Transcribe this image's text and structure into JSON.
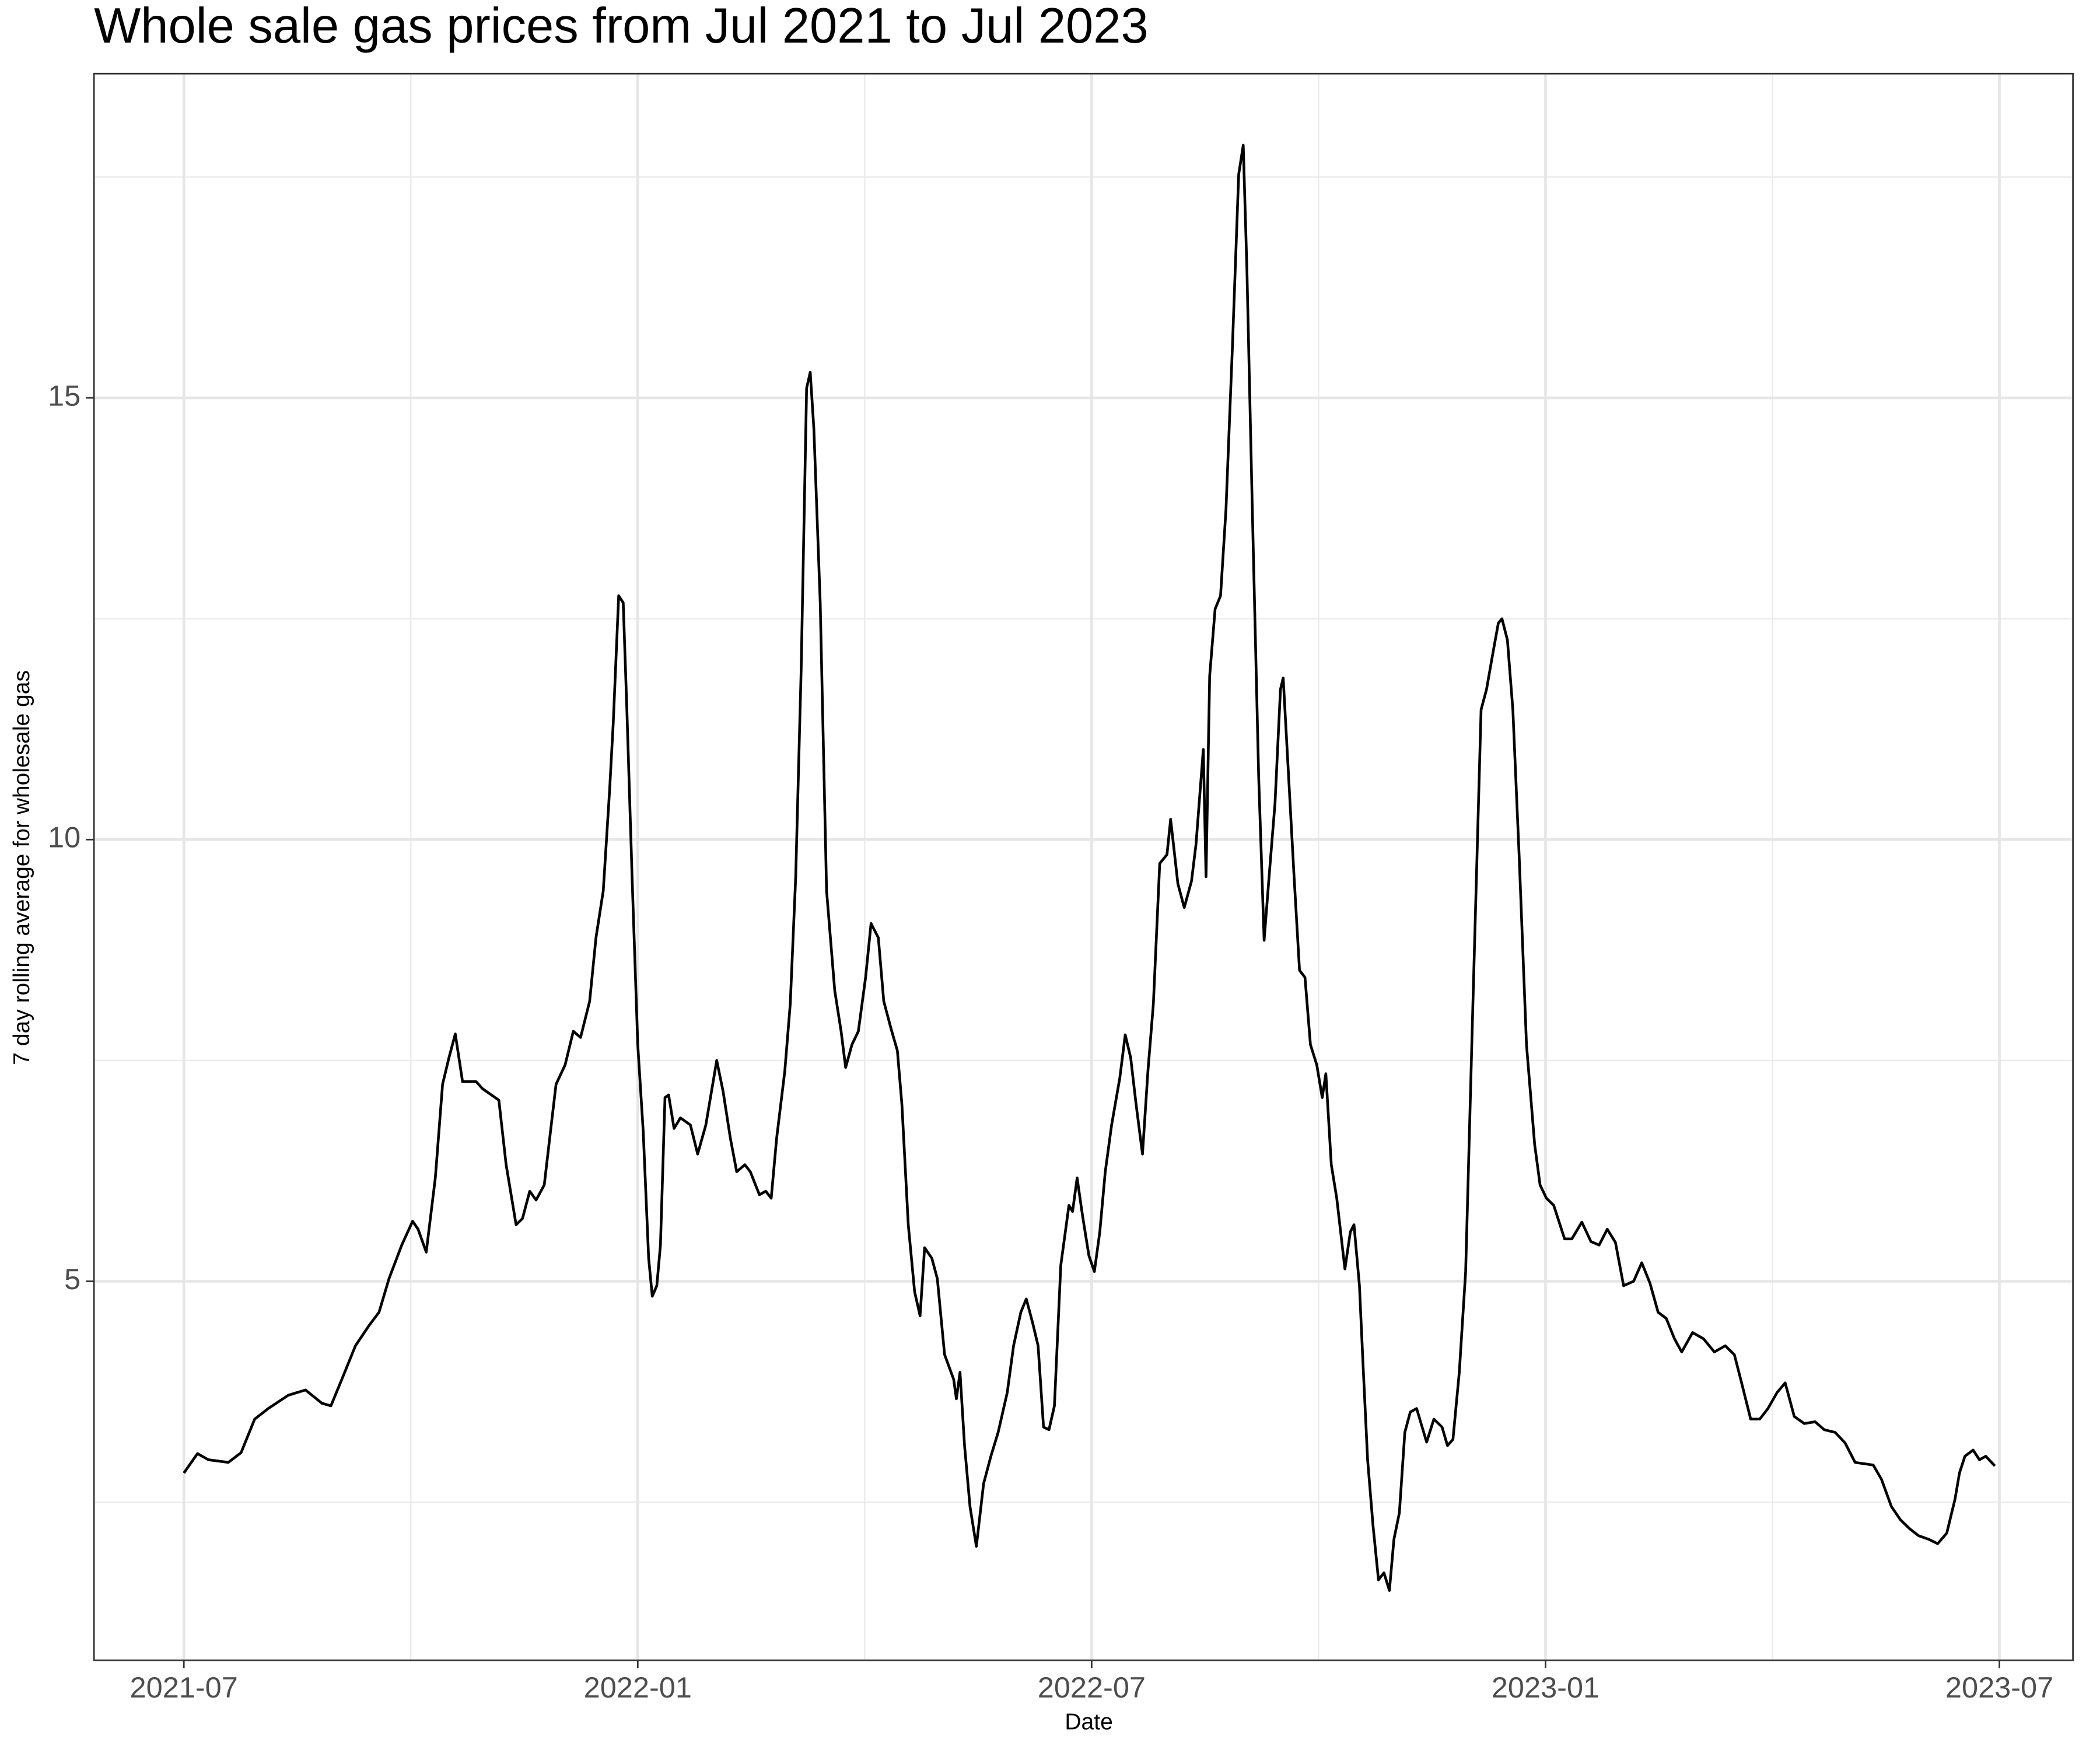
{
  "chart_data": {
    "type": "line",
    "title": "Whole sale gas prices from Jul 2021 to Jul 2023",
    "x_label": "Date",
    "y_label": "7 day rolling average for wholesale gas",
    "color": "#000000",
    "grid": true,
    "xlim": [
      2021.401,
      2023.581
    ],
    "ylim": [
      0.71,
      18.67
    ],
    "xticks": [
      {
        "value": 2021.5,
        "label": "2021-07"
      },
      {
        "value": 2022.0,
        "label": "2022-01"
      },
      {
        "value": 2022.5,
        "label": "2022-07"
      },
      {
        "value": 2023.0,
        "label": "2023-01"
      },
      {
        "value": 2023.5,
        "label": "2023-07"
      }
    ],
    "yticks": [
      5,
      10,
      15
    ],
    "xminor": [
      2021.75,
      2022.25,
      2022.75,
      2023.25
    ],
    "yminor": [
      2.5,
      7.5,
      12.5,
      17.5
    ],
    "x": [
      2021.5,
      2021.515,
      2021.527,
      2021.549,
      2021.563,
      2021.578,
      2021.593,
      2021.615,
      2021.634,
      2021.652,
      2021.662,
      2021.674,
      2021.689,
      2021.704,
      2021.715,
      2021.726,
      2021.74,
      2021.752,
      2021.758,
      2021.767,
      2021.777,
      2021.785,
      2021.792,
      2021.799,
      2021.807,
      2021.822,
      2021.829,
      2021.847,
      2021.855,
      2021.866,
      2021.873,
      2021.881,
      2021.888,
      2021.897,
      2021.903,
      2021.91,
      2021.92,
      2021.929,
      2021.937,
      2021.947,
      2021.954,
      2021.962,
      2021.969,
      2021.973,
      2021.979,
      2021.984,
      2021.988,
      2021.994,
      2022.0,
      2022.006,
      2022.012,
      2022.016,
      2022.021,
      2022.025,
      2022.03,
      2022.034,
      2022.04,
      2022.047,
      2022.058,
      2022.066,
      2022.075,
      2022.087,
      2022.094,
      2022.102,
      2022.109,
      2022.118,
      2022.124,
      2022.134,
      2022.141,
      2022.147,
      2022.153,
      2022.162,
      2022.168,
      2022.174,
      2022.18,
      2022.186,
      2022.19,
      2022.194,
      2022.201,
      2022.208,
      2022.217,
      2022.224,
      2022.229,
      2022.236,
      2022.243,
      2022.251,
      2022.257,
      2022.265,
      2022.271,
      2022.279,
      2022.286,
      2022.291,
      2022.298,
      2022.305,
      2022.311,
      2022.316,
      2022.324,
      2022.33,
      2022.338,
      2022.348,
      2022.351,
      2022.355,
      2022.36,
      2022.366,
      2022.373,
      2022.381,
      2022.389,
      2022.397,
      2022.407,
      2022.414,
      2022.422,
      2022.428,
      2022.435,
      2022.441,
      2022.447,
      2022.453,
      2022.459,
      2022.466,
      2022.475,
      2022.479,
      2022.484,
      2022.49,
      2022.497,
      2022.503,
      2022.509,
      2022.515,
      2022.522,
      2022.531,
      2022.537,
      2022.543,
      2022.549,
      2022.556,
      2022.562,
      2022.568,
      2022.575,
      2022.583,
      2022.587,
      2022.595,
      2022.602,
      2022.61,
      2022.615,
      2022.623,
      2022.626,
      2022.63,
      2022.636,
      2022.642,
      2022.648,
      2022.655,
      2022.662,
      2022.667,
      2022.671,
      2022.677,
      2022.684,
      2022.69,
      2022.696,
      2022.702,
      2022.708,
      2022.711,
      2022.717,
      2022.723,
      2022.729,
      2022.735,
      2022.741,
      2022.748,
      2022.754,
      2022.758,
      2022.764,
      2022.77,
      2022.779,
      2022.785,
      2022.789,
      2022.795,
      2022.799,
      2022.804,
      2022.81,
      2022.816,
      2022.822,
      2022.828,
      2022.833,
      2022.839,
      2022.845,
      2022.851,
      2022.858,
      2022.869,
      2022.877,
      2022.886,
      2022.892,
      2022.898,
      2022.905,
      2022.912,
      2022.92,
      2022.929,
      2022.935,
      2022.942,
      2022.948,
      2022.952,
      2022.958,
      2022.964,
      2022.971,
      2022.979,
      2022.988,
      2022.994,
      2023.001,
      2023.009,
      2023.021,
      2023.029,
      2023.04,
      2023.05,
      2023.059,
      2023.068,
      2023.077,
      2023.086,
      2023.097,
      2023.106,
      2023.115,
      2023.124,
      2023.133,
      2023.142,
      2023.15,
      2023.162,
      2023.174,
      2023.186,
      2023.198,
      2023.208,
      2023.215,
      2023.226,
      2023.236,
      2023.245,
      2023.255,
      2023.264,
      2023.274,
      2023.285,
      2023.297,
      2023.307,
      2023.319,
      2023.33,
      2023.341,
      2023.361,
      2023.37,
      2023.381,
      2023.391,
      2023.401,
      2023.411,
      2023.422,
      2023.432,
      2023.442,
      2023.451,
      2023.456,
      2023.462,
      2023.471,
      2023.478,
      2023.485,
      2023.495
    ],
    "values": [
      2.83,
      3.05,
      2.98,
      2.95,
      3.06,
      3.44,
      3.56,
      3.71,
      3.77,
      3.62,
      3.59,
      3.89,
      4.27,
      4.5,
      4.65,
      5.03,
      5.41,
      5.68,
      5.59,
      5.33,
      6.17,
      7.23,
      7.53,
      7.8,
      7.26,
      7.26,
      7.18,
      7.05,
      6.32,
      5.64,
      5.71,
      6.02,
      5.92,
      6.09,
      6.62,
      7.23,
      7.45,
      7.83,
      7.76,
      8.17,
      8.89,
      9.42,
      10.56,
      11.32,
      12.76,
      12.68,
      11.47,
      9.5,
      7.68,
      6.7,
      5.26,
      4.83,
      4.95,
      5.41,
      7.08,
      7.11,
      6.73,
      6.85,
      6.77,
      6.44,
      6.77,
      7.5,
      7.15,
      6.62,
      6.24,
      6.32,
      6.24,
      5.98,
      6.02,
      5.94,
      6.62,
      7.38,
      8.14,
      9.58,
      11.92,
      15.11,
      15.29,
      14.65,
      12.68,
      9.42,
      8.29,
      7.83,
      7.42,
      7.68,
      7.83,
      8.44,
      9.05,
      8.89,
      8.17,
      7.86,
      7.61,
      7.0,
      5.64,
      4.88,
      4.61,
      5.38,
      5.26,
      5.03,
      4.17,
      3.89,
      3.67,
      3.97,
      3.14,
      2.45,
      2.0,
      2.71,
      3.02,
      3.29,
      3.74,
      4.27,
      4.65,
      4.8,
      4.53,
      4.27,
      3.35,
      3.32,
      3.59,
      5.18,
      5.86,
      5.79,
      6.17,
      5.74,
      5.29,
      5.11,
      5.56,
      6.24,
      6.77,
      7.3,
      7.79,
      7.53,
      7.0,
      6.44,
      7.38,
      8.14,
      9.73,
      9.83,
      10.23,
      9.5,
      9.23,
      9.53,
      9.95,
      11.02,
      9.58,
      11.85,
      12.61,
      12.76,
      13.74,
      15.56,
      17.53,
      17.86,
      16.47,
      13.74,
      10.71,
      8.86,
      9.65,
      10.41,
      11.7,
      11.83,
      10.71,
      9.58,
      8.52,
      8.44,
      7.68,
      7.45,
      7.08,
      7.35,
      6.32,
      5.94,
      5.14,
      5.56,
      5.64,
      4.95,
      4.05,
      2.98,
      2.23,
      1.62,
      1.7,
      1.5,
      2.08,
      2.38,
      3.29,
      3.52,
      3.56,
      3.18,
      3.44,
      3.35,
      3.14,
      3.21,
      3.97,
      5.11,
      8.14,
      11.47,
      11.7,
      12.11,
      12.45,
      12.5,
      12.26,
      11.47,
      9.8,
      7.68,
      6.55,
      6.09,
      5.94,
      5.86,
      5.48,
      5.48,
      5.67,
      5.45,
      5.41,
      5.59,
      5.44,
      4.95,
      5.0,
      5.21,
      4.98,
      4.65,
      4.58,
      4.35,
      4.2,
      4.42,
      4.35,
      4.2,
      4.27,
      4.17,
      3.89,
      3.44,
      3.44,
      3.56,
      3.74,
      3.85,
      3.47,
      3.39,
      3.41,
      3.32,
      3.29,
      3.17,
      2.95,
      2.92,
      2.76,
      2.45,
      2.3,
      2.2,
      2.12,
      2.08,
      2.03,
      2.15,
      2.53,
      2.83,
      3.02,
      3.09,
      2.98,
      3.02,
      2.91
    ]
  }
}
